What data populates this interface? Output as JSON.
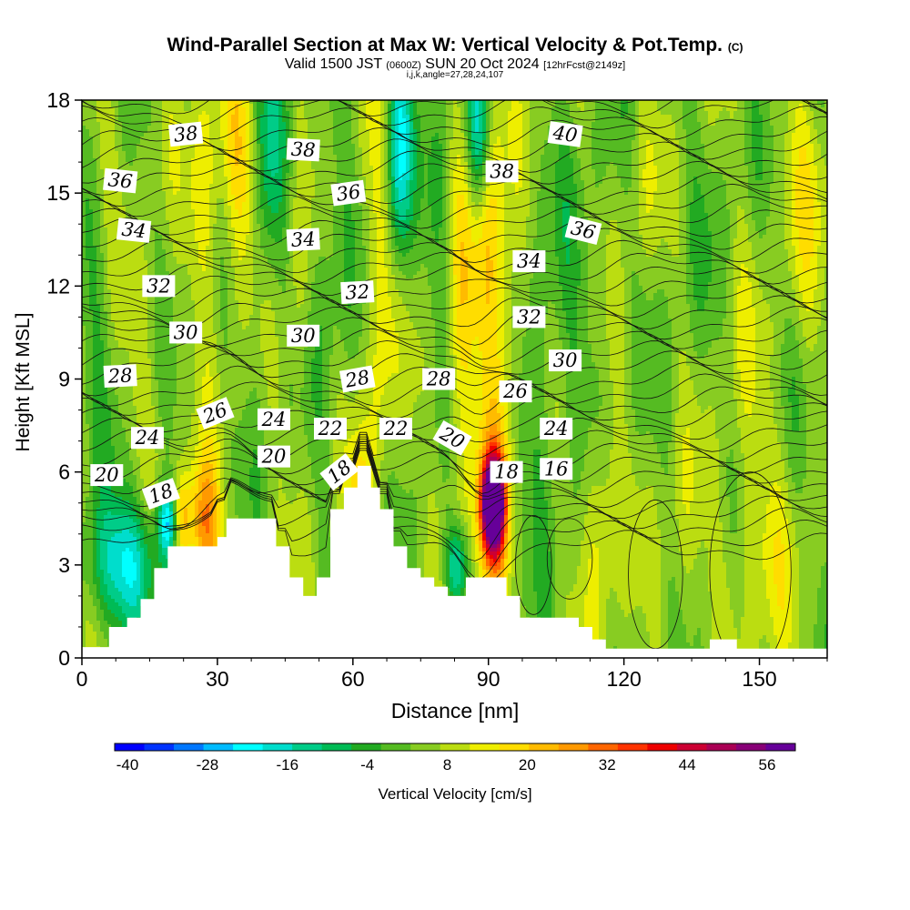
{
  "header": {
    "title": "Wind-Parallel Section at Max W: Vertical Velocity & Pot.Temp.",
    "copyright": "(C)",
    "valid_prefix": "Valid 1500 JST",
    "valid_utc": "(0600Z)",
    "valid_suffix": "SUN 20 Oct 2024",
    "fcst": "[12hrFcst@2149z]",
    "indices": "i,j,k,angle=27,28,24,107"
  },
  "chart_data": {
    "type": "heatmap",
    "title": "Wind-Parallel Section at Max W: Vertical Velocity & Pot.Temp.",
    "xlabel": "Distance [nm]",
    "ylabel": "Height [Kft MSL]",
    "xlim": [
      0,
      165
    ],
    "ylim": [
      0,
      18
    ],
    "xticks": [
      0,
      30,
      60,
      90,
      120,
      150
    ],
    "yticks": [
      0,
      3,
      6,
      9,
      12,
      15,
      18
    ],
    "colorbar": {
      "label": "Vertical Velocity [cm/s]",
      "tick_labels": [
        "-40",
        "-28",
        "-16",
        "-4",
        "8",
        "20",
        "32",
        "44",
        "56"
      ],
      "colors": [
        "#0000ff",
        "#0033ff",
        "#0077ff",
        "#00bbff",
        "#00ffff",
        "#00ddcc",
        "#00cc88",
        "#00bb55",
        "#22aa22",
        "#55bb22",
        "#88cc22",
        "#bbdd11",
        "#eeee00",
        "#ffdd00",
        "#ffbb00",
        "#ff9900",
        "#ff6600",
        "#ff3300",
        "#ee0000",
        "#cc0033",
        "#aa0055",
        "#880077",
        "#660099"
      ]
    },
    "terrain": [
      [
        0,
        0.35
      ],
      [
        6,
        0.35
      ],
      [
        6,
        1.0
      ],
      [
        10,
        1.0
      ],
      [
        10,
        1.3
      ],
      [
        13,
        1.3
      ],
      [
        13,
        1.9
      ],
      [
        16,
        1.9
      ],
      [
        16,
        2.9
      ],
      [
        19,
        2.9
      ],
      [
        19,
        3.6
      ],
      [
        30,
        3.6
      ],
      [
        30,
        3.9
      ],
      [
        32,
        3.9
      ],
      [
        32,
        4.5
      ],
      [
        38,
        4.5
      ],
      [
        38,
        4.5
      ],
      [
        43,
        4.5
      ],
      [
        43,
        3.6
      ],
      [
        46,
        3.6
      ],
      [
        46,
        2.6
      ],
      [
        49,
        2.6
      ],
      [
        49,
        2.0
      ],
      [
        52,
        2.0
      ],
      [
        52,
        2.6
      ],
      [
        55,
        2.6
      ],
      [
        55,
        4.8
      ],
      [
        58,
        4.8
      ],
      [
        58,
        5.5
      ],
      [
        61,
        5.5
      ],
      [
        61,
        6.2
      ],
      [
        64,
        6.2
      ],
      [
        64,
        5.5
      ],
      [
        66,
        5.5
      ],
      [
        66,
        4.8
      ],
      [
        69,
        4.8
      ],
      [
        69,
        3.6
      ],
      [
        72,
        3.6
      ],
      [
        72,
        2.9
      ],
      [
        75,
        2.9
      ],
      [
        75,
        2.6
      ],
      [
        78,
        2.6
      ],
      [
        78,
        2.3
      ],
      [
        81,
        2.3
      ],
      [
        81,
        2.0
      ],
      [
        85,
        2.0
      ],
      [
        85,
        2.6
      ],
      [
        94,
        2.6
      ],
      [
        94,
        2.0
      ],
      [
        97,
        2.0
      ],
      [
        97,
        1.3
      ],
      [
        110,
        1.3
      ],
      [
        110,
        1.0
      ],
      [
        113,
        1.0
      ],
      [
        113,
        0.6
      ],
      [
        116,
        0.6
      ],
      [
        116,
        0.3
      ],
      [
        126,
        0.3
      ],
      [
        126,
        0.3
      ],
      [
        139,
        0.3
      ],
      [
        139,
        0.6
      ],
      [
        145,
        0.6
      ],
      [
        145,
        0.3
      ],
      [
        165,
        0.3
      ]
    ],
    "w_features": [
      {
        "x": 91,
        "y": 5,
        "sx": 1.5,
        "sy": 0.9,
        "w": 60
      },
      {
        "x": 91,
        "y": 4.5,
        "sx": 2.5,
        "sy": 1.8,
        "w": 25
      },
      {
        "x": 90,
        "y": 14,
        "sx": 2.5,
        "sy": 4.5,
        "w": 14
      },
      {
        "x": 94,
        "y": 10,
        "sx": 2.5,
        "sy": 3,
        "w": 10
      },
      {
        "x": 84,
        "y": 10,
        "sx": 2.5,
        "sy": 6,
        "w": 10
      },
      {
        "x": 66,
        "y": 12,
        "sx": 2,
        "sy": 5,
        "w": 12
      },
      {
        "x": 27,
        "y": 4.2,
        "sx": 2.5,
        "sy": 1.6,
        "w": 24
      },
      {
        "x": 22,
        "y": 4.4,
        "sx": 1.5,
        "sy": 1,
        "w": 16
      },
      {
        "x": 115,
        "y": 4.5,
        "sx": 3,
        "sy": 2.5,
        "w": 10
      },
      {
        "x": 35,
        "y": 16,
        "sx": 3.5,
        "sy": 2.5,
        "w": 13
      },
      {
        "x": 27,
        "y": 15,
        "sx": 2.5,
        "sy": 2.5,
        "w": 10
      },
      {
        "x": 61,
        "y": 5,
        "sx": 2,
        "sy": 1.5,
        "w": 10
      },
      {
        "x": 10,
        "y": 3,
        "sx": 6,
        "sy": 1.5,
        "w": -22
      },
      {
        "x": 19,
        "y": 4.4,
        "sx": 1.5,
        "sy": 0.8,
        "w": -24
      },
      {
        "x": 83,
        "y": 2.9,
        "sx": 2,
        "sy": 1,
        "w": -22
      },
      {
        "x": 88,
        "y": 17,
        "sx": 1.8,
        "sy": 1.8,
        "w": -24
      },
      {
        "x": 70,
        "y": 16.5,
        "sx": 2,
        "sy": 2.5,
        "w": -24
      },
      {
        "x": 41,
        "y": 16,
        "sx": 2.5,
        "sy": 3,
        "w": -14
      },
      {
        "x": 55,
        "y": 13,
        "sx": 3,
        "sy": 3,
        "w": -6
      },
      {
        "x": 80,
        "y": 15,
        "sx": 2.5,
        "sy": 3,
        "w": -6
      },
      {
        "x": 100,
        "y": 8,
        "sx": 4,
        "sy": 3,
        "w": -6
      },
      {
        "x": 110,
        "y": 12,
        "sx": 5,
        "sy": 4,
        "w": -4
      },
      {
        "x": 140,
        "y": 12,
        "sx": 6,
        "sy": 4,
        "w": -3
      },
      {
        "x": 3,
        "y": 12,
        "sx": 3,
        "sy": 4,
        "w": -4
      },
      {
        "x": 150,
        "y": 3.5,
        "sx": 6,
        "sy": 2.5,
        "w": 7
      },
      {
        "x": 133,
        "y": 3.5,
        "sx": 3,
        "sy": 2.5,
        "w": 5
      },
      {
        "x": 160,
        "y": 15,
        "sx": 4,
        "sy": 3,
        "w": 7
      },
      {
        "x": 145,
        "y": 10,
        "sx": 4,
        "sy": 3,
        "w": 5
      },
      {
        "x": 124,
        "y": 15,
        "sx": 3,
        "sy": 2,
        "w": 4
      },
      {
        "x": 48,
        "y": 12,
        "sx": 2,
        "sy": 3,
        "w": 5
      },
      {
        "x": 14,
        "y": 10,
        "sx": 3,
        "sy": 3,
        "w": 4
      },
      {
        "x": 5,
        "y": 17,
        "sx": 3,
        "sy": 2,
        "w": 4
      }
    ],
    "contour_labels": [
      {
        "text": "38",
        "x": 23,
        "y": 16.9,
        "rot": -6
      },
      {
        "text": "38",
        "x": 49,
        "y": 16.4,
        "rot": 3
      },
      {
        "text": "40",
        "x": 107,
        "y": 16.9,
        "rot": 8
      },
      {
        "text": "36",
        "x": 8.5,
        "y": 15.4,
        "rot": 6
      },
      {
        "text": "36",
        "x": 59,
        "y": 15.0,
        "rot": -8
      },
      {
        "text": "38",
        "x": 93,
        "y": 15.7,
        "rot": 0
      },
      {
        "text": "34",
        "x": 11.5,
        "y": 13.8,
        "rot": 6
      },
      {
        "text": "34",
        "x": 49,
        "y": 13.5,
        "rot": -3
      },
      {
        "text": "36",
        "x": 111,
        "y": 13.8,
        "rot": 14
      },
      {
        "text": "34",
        "x": 99,
        "y": 12.8,
        "rot": 0
      },
      {
        "text": "32",
        "x": 17,
        "y": 12.0,
        "rot": 0
      },
      {
        "text": "32",
        "x": 61,
        "y": 11.8,
        "rot": -3
      },
      {
        "text": "32",
        "x": 99,
        "y": 11.0,
        "rot": 0
      },
      {
        "text": "30",
        "x": 23,
        "y": 10.5,
        "rot": 0
      },
      {
        "text": "30",
        "x": 49,
        "y": 10.4,
        "rot": 0
      },
      {
        "text": "30",
        "x": 107,
        "y": 9.6,
        "rot": 0
      },
      {
        "text": "28",
        "x": 8.5,
        "y": 9.1,
        "rot": -3
      },
      {
        "text": "28",
        "x": 61,
        "y": 9.0,
        "rot": -10
      },
      {
        "text": "28",
        "x": 79,
        "y": 9.0,
        "rot": 0
      },
      {
        "text": "26",
        "x": 96,
        "y": 8.6,
        "rot": 0
      },
      {
        "text": "26",
        "x": 29.5,
        "y": 7.9,
        "rot": -22
      },
      {
        "text": "24",
        "x": 42.5,
        "y": 7.7,
        "rot": 0
      },
      {
        "text": "22",
        "x": 55,
        "y": 7.4,
        "rot": 0
      },
      {
        "text": "22",
        "x": 69.5,
        "y": 7.4,
        "rot": 0
      },
      {
        "text": "24",
        "x": 105,
        "y": 7.4,
        "rot": 0
      },
      {
        "text": "24",
        "x": 14.5,
        "y": 7.1,
        "rot": 0
      },
      {
        "text": "20",
        "x": 82,
        "y": 7.1,
        "rot": 30
      },
      {
        "text": "20",
        "x": 42.5,
        "y": 6.5,
        "rot": 0
      },
      {
        "text": "20",
        "x": 5.5,
        "y": 5.9,
        "rot": 0
      },
      {
        "text": "18",
        "x": 94,
        "y": 6.0,
        "rot": 0
      },
      {
        "text": "16",
        "x": 105,
        "y": 6.1,
        "rot": 0
      },
      {
        "text": "18",
        "x": 57,
        "y": 6.0,
        "rot": -38
      },
      {
        "text": "18",
        "x": 17.5,
        "y": 5.3,
        "rot": -20
      }
    ]
  }
}
